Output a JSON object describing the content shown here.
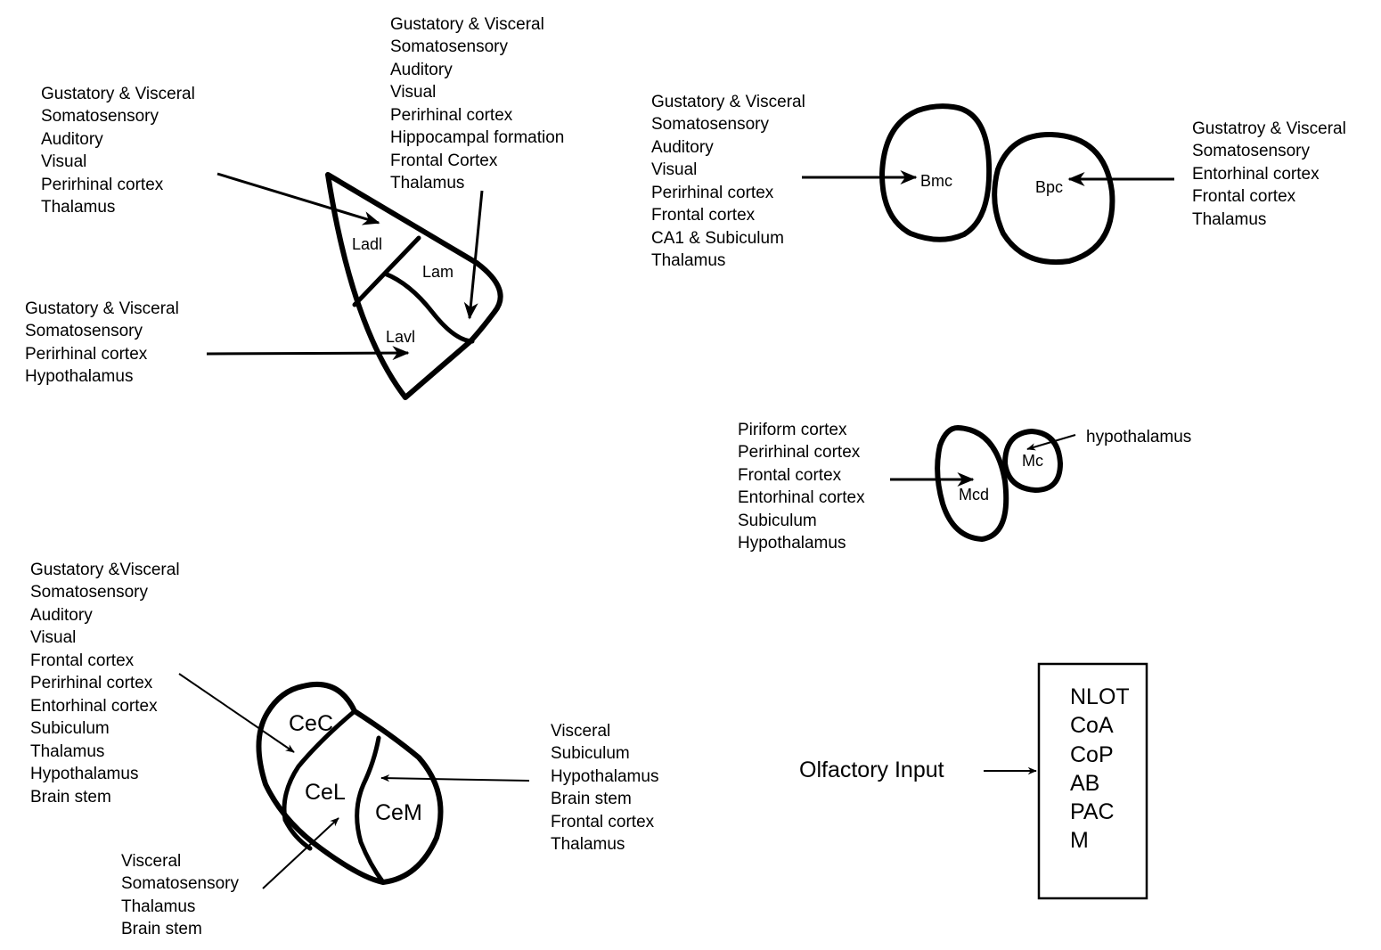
{
  "colors": {
    "ink": "#000000",
    "background": "#ffffff"
  },
  "lateral": {
    "regions": {
      "ladl": "Ladl",
      "lam": "Lam",
      "lavl": "Lavl"
    },
    "inputs_ladl": [
      "Gustatory & Visceral",
      "Somatosensory",
      "Auditory",
      "Visual",
      "Perirhinal cortex",
      "Thalamus"
    ],
    "inputs_lam": [
      "Gustatory & Visceral",
      "Somatosensory",
      "Auditory",
      "Visual",
      "Perirhinal cortex",
      "Hippocampal formation",
      "Frontal Cortex",
      "Thalamus"
    ],
    "inputs_lavl": [
      "Gustatory & Visceral",
      "Somatosensory",
      "Perirhinal cortex",
      "Hypothalamus"
    ]
  },
  "basal": {
    "regions": {
      "bmc": "Bmc",
      "bpc": "Bpc"
    },
    "inputs_bmc": [
      "Gustatory & Visceral",
      "Somatosensory",
      "Auditory",
      "Visual",
      "Perirhinal cortex",
      "Frontal cortex",
      "CA1 & Subiculum",
      "Thalamus"
    ],
    "inputs_bpc": [
      "Gustatroy & Visceral",
      "Somatosensory",
      "Entorhinal cortex",
      "Frontal cortex",
      "Thalamus"
    ]
  },
  "medial": {
    "regions": {
      "mcd": "Mcd",
      "mc": "Mc"
    },
    "inputs_mcd": [
      "Piriform cortex",
      "Perirhinal cortex",
      "Frontal cortex",
      "Entorhinal cortex",
      "Subiculum",
      "Hypothalamus"
    ],
    "inputs_mc": [
      "hypothalamus"
    ]
  },
  "central": {
    "regions": {
      "cec": "CeC",
      "cel": "CeL",
      "cem": "CeM"
    },
    "inputs_cec": [
      "Gustatory &Visceral",
      "Somatosensory",
      "Auditory",
      "Visual",
      "Frontal cortex",
      "Perirhinal cortex",
      "Entorhinal cortex",
      "Subiculum",
      "Thalamus",
      "Hypothalamus",
      "Brain stem"
    ],
    "inputs_cel": [
      "Visceral",
      "Somatosensory",
      "Thalamus",
      "Brain stem"
    ],
    "inputs_cem": [
      "Visceral",
      "Subiculum",
      "Hypothalamus",
      "Brain stem",
      "Frontal cortex",
      "Thalamus"
    ]
  },
  "olfactory": {
    "label": "Olfactory Input",
    "targets": [
      "NLOT",
      "CoA",
      "CoP",
      "AB",
      "PAC",
      "M"
    ]
  }
}
